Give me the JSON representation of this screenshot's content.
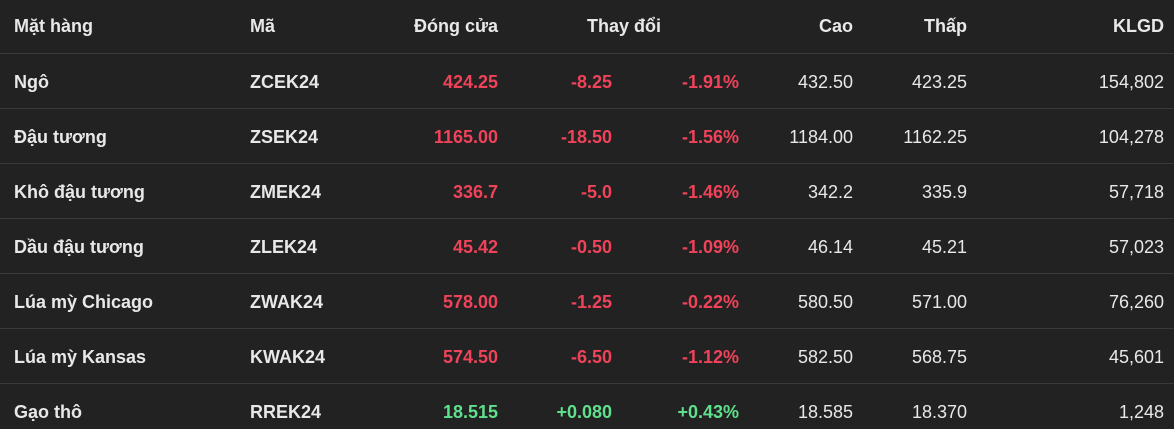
{
  "table": {
    "header": [
      "Mặt hàng",
      "Mã",
      "Đóng cửa",
      "Thay đổi",
      "Cao",
      "Thấp",
      "KLGD"
    ],
    "rows": [
      [
        "Ngô",
        "ZCEK24",
        "424.25",
        "-8.25",
        "-1.91%",
        "432.50",
        "423.25",
        "154,802"
      ],
      [
        "Đậu tương",
        "ZSEK24",
        "1165.00",
        "-18.50",
        "-1.56%",
        "1184.00",
        "1162.25",
        "104,278"
      ],
      [
        "Khô đậu tương",
        "ZMEK24",
        "336.7",
        "-5.0",
        "-1.46%",
        "342.2",
        "335.9",
        "57,718"
      ],
      [
        "Dầu đậu tương",
        "ZLEK24",
        "45.42",
        "-0.50",
        "-1.09%",
        "46.14",
        "45.21",
        "57,023"
      ],
      [
        "Lúa mỳ Chicago",
        "ZWAK24",
        "578.00",
        "-1.25",
        "-0.22%",
        "580.50",
        "571.00",
        "76,260"
      ],
      [
        "Lúa mỳ Kansas",
        "KWAK24",
        "574.50",
        "-6.50",
        "-1.12%",
        "582.50",
        "568.75",
        "45,601"
      ],
      [
        "Gạo thô",
        "RREK24",
        "18.515",
        "+0.080",
        "+0.43%",
        "18.585",
        "18.370",
        "1,248"
      ]
    ],
    "colors": {
      "down": "#f0435a",
      "up": "#5fe08c",
      "text": "#e8e8e8"
    }
  }
}
